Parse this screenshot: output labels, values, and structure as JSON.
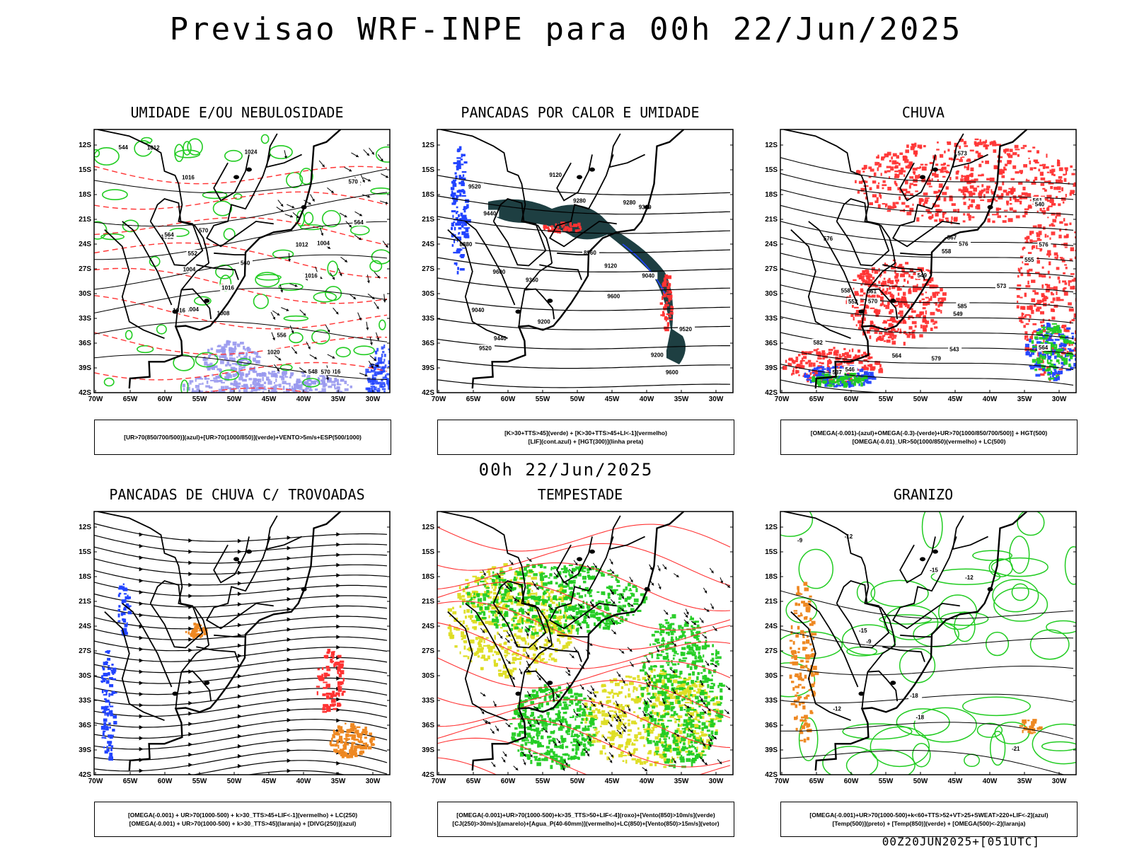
{
  "title": "Previsao WRF-INPE  para 00h 22/Jun/2025",
  "mid_time": "00h 22/Jun/2025",
  "footer": "00Z20JUN2025+[051UTC]",
  "axes": {
    "lat": [
      "12S",
      "15S",
      "18S",
      "21S",
      "24S",
      "27S",
      "30S",
      "33S",
      "36S",
      "39S",
      "42S"
    ],
    "lon": [
      "70W",
      "65W",
      "60W",
      "55W",
      "50W",
      "45W",
      "40W",
      "35W",
      "30W"
    ]
  },
  "colors": {
    "green": "#22cc22",
    "red": "#ff3333",
    "blue": "#2244ff",
    "lightblue": "#9999ee",
    "orange": "#ee8822",
    "yellow": "#dddd22",
    "darkteal": "#1e3f42",
    "black": "#000000"
  },
  "panels": [
    {
      "title": "UMIDADE E/OU NEBULOSIDADE",
      "legend": [
        "[UR>70(850/700/500)](azul)+[UR>70(1000/850)](verde)+VENTO>5m/s+ESP(500/1000)"
      ],
      "labels": [
        "1016",
        "1012",
        "1012",
        "1016",
        "1016",
        "1016",
        "1008",
        "1004",
        "1004",
        "1012",
        "1004",
        "1024",
        "544",
        "548",
        "552",
        "556",
        "560",
        "564",
        "570",
        "570",
        "570",
        "564",
        "1020",
        "1016"
      ]
    },
    {
      "title": "PANCADAS POR CALOR E UMIDADE",
      "legend": [
        "[K>30+TTS>45](verde) + [K>30+TTS>45+LI<-1](vermelho)",
        "[LIF](cont.azul) + [HGT(300)](linha preta)"
      ],
      "labels": [
        "9600",
        "9600",
        "9600",
        "9520",
        "9520",
        "9440",
        "9440",
        "9360",
        "9360",
        "9280",
        "9280",
        "9200",
        "9200",
        "9120",
        "9120",
        "9040",
        "9040",
        "8960",
        "8880",
        "9520"
      ]
    },
    {
      "title": "CHUVA",
      "legend": [
        "[OMEGA(-0.001)-(azul)+OMEGA(-0.3)-(verde)+UR>70(1000/850/700/500)] + HGT(500)",
        "[OMEGA(-0.01)_UR>50(1000/850)(vermelho) + LC(500)"
      ],
      "labels": [
        "585",
        "582",
        "579",
        "576",
        "576",
        "573",
        "573",
        "570",
        "567",
        "564",
        "564",
        "561",
        "561",
        "558",
        "558",
        "555",
        "552",
        "549",
        "546",
        "543",
        "540",
        "537",
        "576",
        "549"
      ]
    },
    {
      "title": "PANCADAS DE CHUVA C/ TROVOADAS",
      "legend": [
        "[OMEGA(-0.001) + UR>70(1000-500) + k>30_TTS>45+LIF<-1](vermelho) + LC(250)",
        "[OMEGA(-0.001) + UR>70(1000-500) + k>30_TTS>45](laranja) + [DIVG(250)](azul)"
      ],
      "labels": []
    },
    {
      "title": "TEMPESTADE",
      "legend": [
        "[OMEGA(-0.001)+UR>70(1000-500)+k>35_TTS>50+LIF<-4](roxo)+[Vento(850)>10m/s](verde)",
        "[CJ(250)>30m/s](amarelo)+[Agua_P(40-60mm)](vermelho)+LC(850)+[Vento(850)>15m/s](vetor)"
      ],
      "labels": []
    },
    {
      "title": "GRANIZO",
      "legend": [
        "[OMEGA(-0.001)+UR>70(1000-500)+k<60+TTS>52+VT>25+SWEAT>220+LIF<-2](azul)",
        "[Temp(500)](preto) + [Temp(850)](verde) + [OMEGA(500)<-2](laranja)"
      ],
      "labels": [
        "-12",
        "-15",
        "-18",
        "-21",
        "-9",
        "-12",
        "-15",
        "-18",
        "-9",
        "-12"
      ]
    }
  ]
}
